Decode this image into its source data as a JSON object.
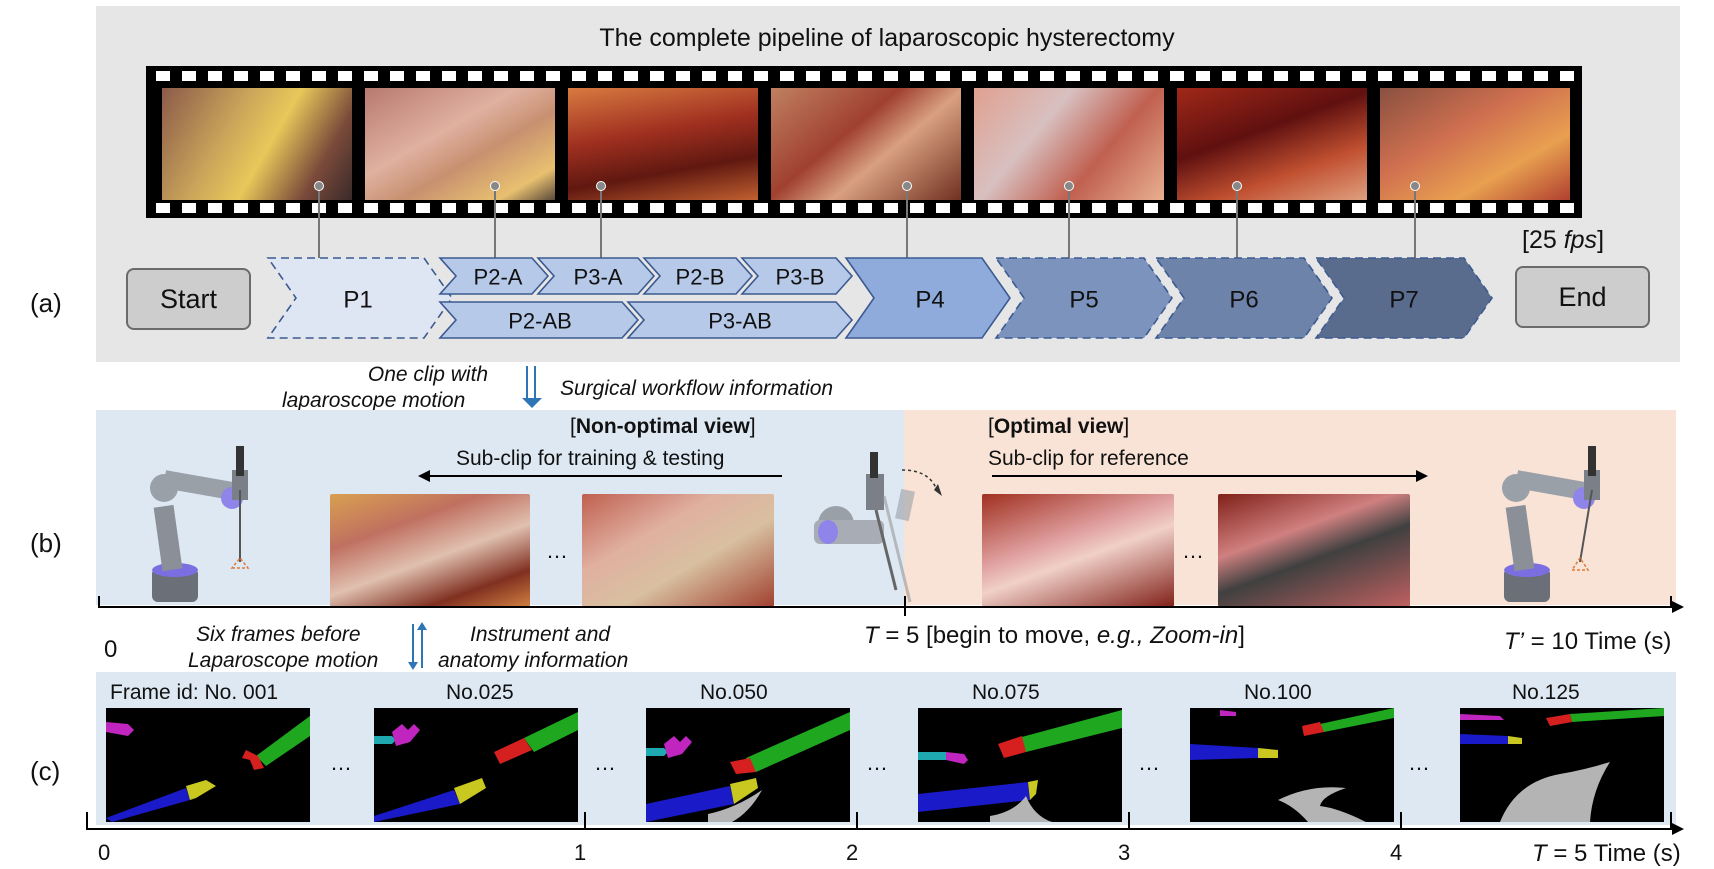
{
  "panel_a": {
    "title": "The complete pipeline of laparoscopic hysterectomy",
    "label": "(a)",
    "fps_prefix": "[25 ",
    "fps_unit": "fps",
    "fps_suffix": "]",
    "start_label": "Start",
    "end_label": "End",
    "phases": [
      "P1",
      "P2-A",
      "P3-A",
      "P2-B",
      "P3-B",
      "P2-AB",
      "P3-AB",
      "P4",
      "P5",
      "P6",
      "P7"
    ],
    "colors": {
      "p1": "#dfe6f3",
      "p2": "#b6c9e8",
      "p4": "#8eabdc",
      "p5": "#7b93bd",
      "p6": "#6d83aa",
      "p7": "#5a6c8e"
    }
  },
  "between_ab": {
    "left_text_line1": "One clip with",
    "left_text_line2": "laparoscope motion",
    "right_text": "Surgical workflow information"
  },
  "panel_b": {
    "label": "(b)",
    "nonopt_bracket_open": "[",
    "nonopt_title": "Non-optimal view",
    "nonopt_bracket_close": "]",
    "nonopt_sub": "Sub-clip for training & testing",
    "opt_bracket_open": "[",
    "opt_title": "Optimal view",
    "opt_bracket_close": "]",
    "opt_sub": "Sub-clip for reference",
    "ellipsis": "…",
    "axis_zero": "0",
    "t_label_var": "T",
    "t_label_rest": " = 5 [begin to move, ",
    "t_label_eg": "e.g., Zoom-in",
    "t_label_end": "]",
    "tprime_var": "T’",
    "tprime_rest": " = 10  Time (s)"
  },
  "between_bc": {
    "left_line1": "Six frames before",
    "left_line2": "Laparoscope motion",
    "right_line1": "Instrument and",
    "right_line2": "anatomy information"
  },
  "panel_c": {
    "label": "(c)",
    "frame_id_label": "Frame id:  No. 001",
    "frame_ids": [
      "No.025",
      "No.050",
      "No.075",
      "No.100",
      "No.125"
    ],
    "ellipsis": "…",
    "ticks": [
      "0",
      "1",
      "2",
      "3",
      "4"
    ],
    "t_var": "T",
    "t_rest": " = 5 Time (s)",
    "mask_colors": {
      "magenta": "#c025c0",
      "green": "#1fa81f",
      "red": "#d62020",
      "blue": "#1a1ac8",
      "yellow": "#c8c820",
      "cyan": "#20a8b0",
      "gray": "#b4b4b4"
    }
  }
}
